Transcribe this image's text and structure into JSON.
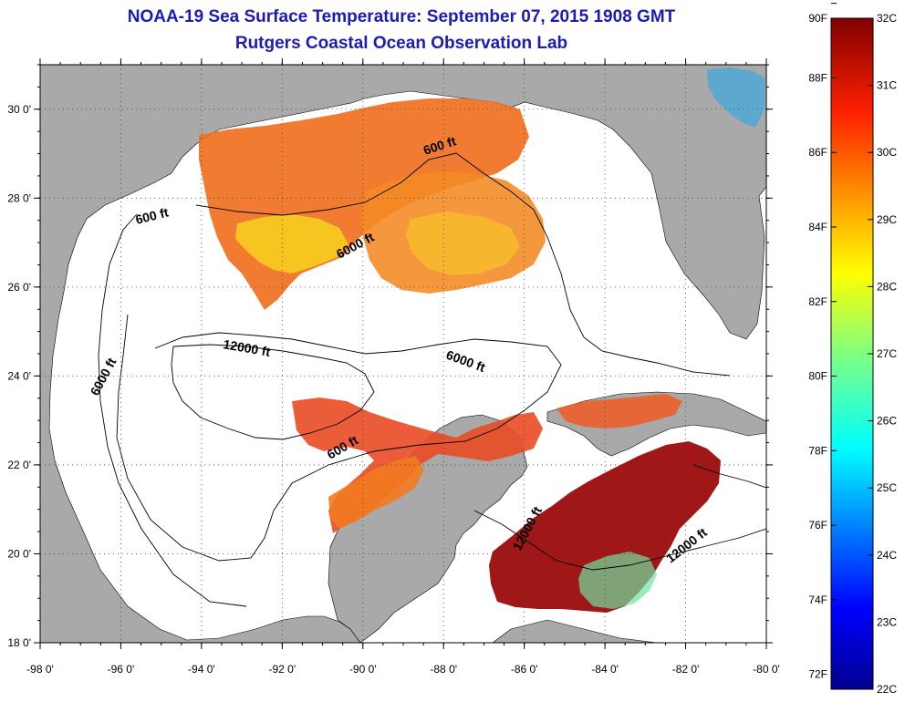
{
  "title_line1": "NOAA-19 Sea Surface Temperature:  September 07, 2015 1908 GMT",
  "title_line2": "Rutgers Coastal Ocean Observation Lab",
  "axes": {
    "lon_labels": [
      "-98 0'",
      "-96 0'",
      "-94 0'",
      "-92 0'",
      "-90 0'",
      "-88 0'",
      "-86 0'",
      "-84 0'",
      "-82 0'",
      "-80 0'"
    ],
    "lat_labels": [
      "18 0'",
      "20 0'",
      "22 0'",
      "24 0'",
      "26 0'",
      "28 0'",
      "30 0'"
    ],
    "lon_range": [
      -98,
      -80
    ],
    "lat_range": [
      18,
      31
    ]
  },
  "contours": [
    {
      "label": "600 ft",
      "id": "c600a"
    },
    {
      "label": "600 ft",
      "id": "c600b"
    },
    {
      "label": "600 ft",
      "id": "c600c"
    },
    {
      "label": "6000 ft",
      "id": "c6000a"
    },
    {
      "label": "6000 ft",
      "id": "c6000b"
    },
    {
      "label": "6000 ft",
      "id": "c6000c"
    },
    {
      "label": "12000 ft",
      "id": "c12000a"
    },
    {
      "label": "12000 ft",
      "id": "c12000b"
    },
    {
      "label": "12000 ft",
      "id": "c12000c"
    }
  ],
  "colorbar": {
    "fahrenheit": [
      "90F",
      "88F",
      "86F",
      "84F",
      "82F",
      "80F",
      "78F",
      "76F",
      "74F",
      "72F"
    ],
    "celsius": [
      "32C",
      "31C",
      "30C",
      "29C",
      "28C",
      "27C",
      "26C",
      "25C",
      "24C",
      "23C",
      "22C"
    ],
    "range_c": [
      22,
      32
    ]
  },
  "colors": {
    "land": "#a9a9a9",
    "ocean": "#ffffff",
    "title": "#1c1cb4"
  }
}
